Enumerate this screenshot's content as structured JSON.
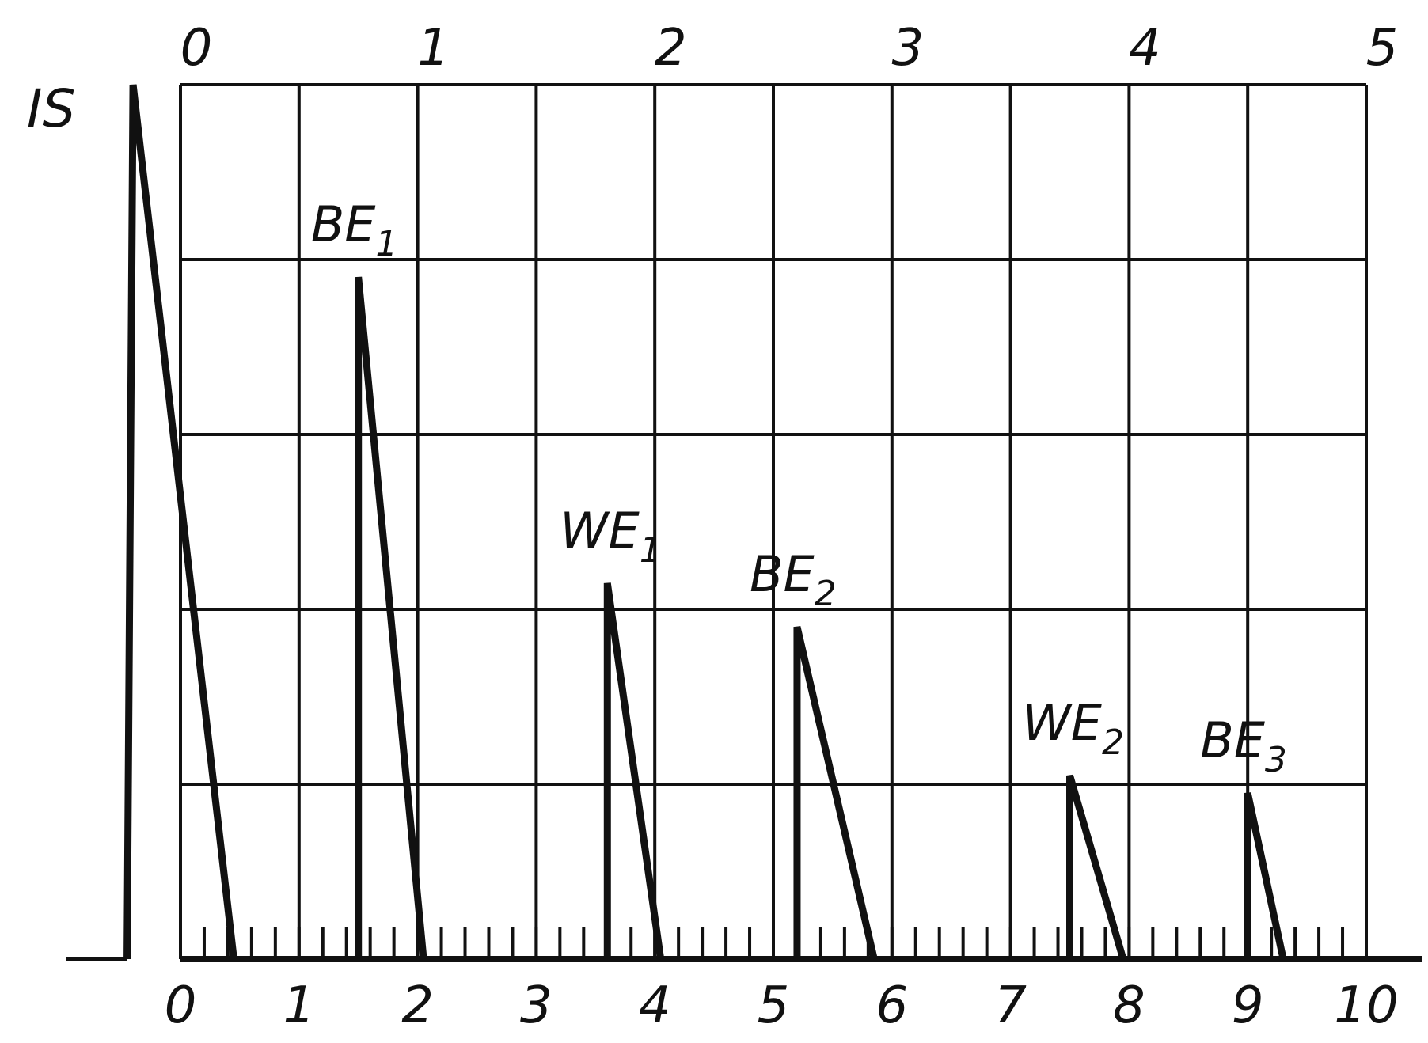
{
  "chart_data": {
    "type": "line",
    "title": "",
    "ylabel": "IS",
    "xlabel": "",
    "grid": true,
    "legend": "none",
    "colors": {
      "line": "#111111",
      "background": "#ffffff"
    },
    "x_bottom": {
      "ticks": [
        "0",
        "1",
        "2",
        "3",
        "4",
        "5",
        "6",
        "7",
        "8",
        "9",
        "10"
      ],
      "range": [
        0,
        10
      ]
    },
    "x_top": {
      "ticks": [
        "0",
        "1",
        "2",
        "3",
        "4",
        "5"
      ],
      "range": [
        0,
        5
      ]
    },
    "ylim": [
      0,
      5
    ],
    "initial_pulse": {
      "label": "IS",
      "x_start": -0.45,
      "x_peak": -0.4,
      "y_peak": 5.0,
      "x_end": 0.45
    },
    "peaks": [
      {
        "label": "BE",
        "sub": "1",
        "x_start": 1.5,
        "y": 3.9,
        "x_end": 2.05
      },
      {
        "label": "WE",
        "sub": "1",
        "x_start": 3.6,
        "y": 2.15,
        "x_end": 4.05
      },
      {
        "label": "BE",
        "sub": "2",
        "x_start": 5.2,
        "y": 1.9,
        "x_end": 5.85
      },
      {
        "label": "WE",
        "sub": "2",
        "x_start": 7.5,
        "y": 1.05,
        "x_end": 7.95
      },
      {
        "label": "BE",
        "sub": "3",
        "x_start": 9.0,
        "y": 0.95,
        "x_end": 9.3
      }
    ]
  }
}
